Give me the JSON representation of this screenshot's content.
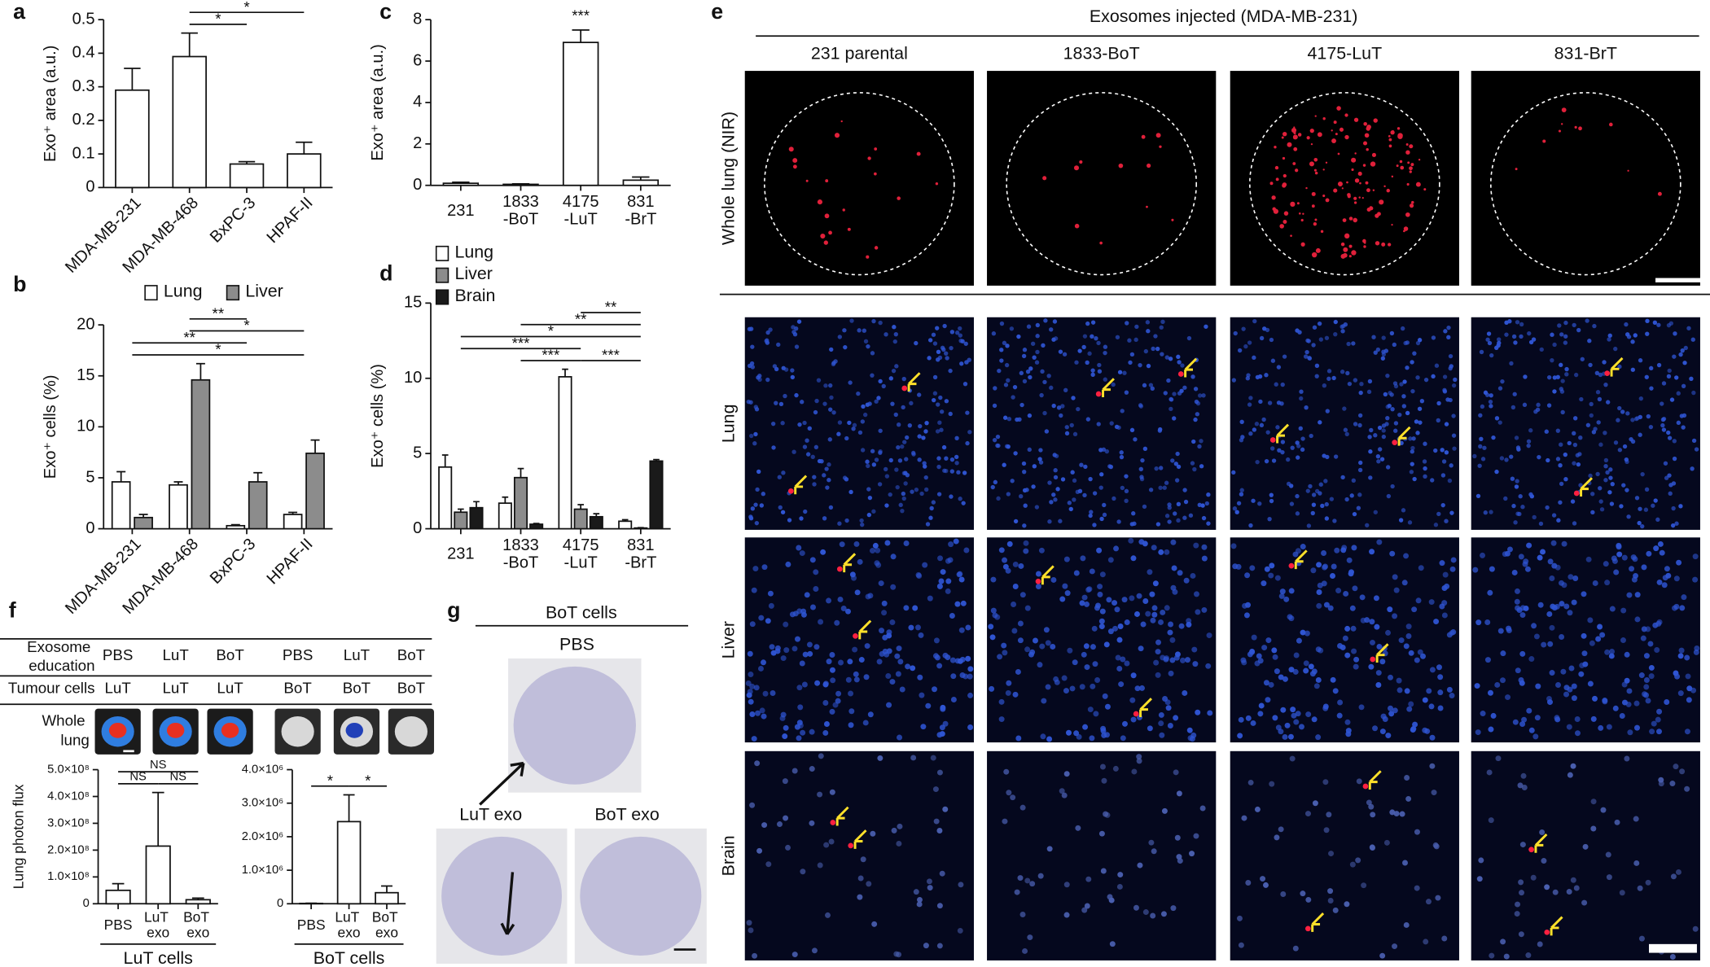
{
  "panel_labels": [
    "a",
    "b",
    "c",
    "d",
    "e",
    "f",
    "g"
  ],
  "chart_data": [
    {
      "type": "bar",
      "ylabel": "Exo⁺ area (a.u.)",
      "categories": [
        "MDA-MB-231",
        "MDA-MB-468",
        "BxPC-3",
        "HPAF-II"
      ],
      "values": [
        0.29,
        0.39,
        0.07,
        0.1
      ],
      "errors": [
        0.065,
        0.07,
        0.007,
        0.035
      ],
      "color": "#ffffff",
      "ylim": [
        0,
        0.5
      ],
      "yticks": [
        0,
        0.1,
        0.2,
        0.3,
        0.4,
        0.5
      ],
      "annotations": [
        {
          "label": "*",
          "from": 1,
          "to": 3
        },
        {
          "label": "*",
          "from": 1,
          "to": 2
        }
      ]
    },
    {
      "type": "grouped_bar",
      "ylabel": "Exo⁺ cells (%)",
      "categories": [
        "MDA-MB-231",
        "MDA-MB-468",
        "BxPC-3",
        "HPAF-II"
      ],
      "series": [
        {
          "name": "Lung",
          "color": "#ffffff",
          "values": [
            4.6,
            4.3,
            0.3,
            1.4
          ],
          "errors": [
            1.0,
            0.3,
            0.1,
            0.2
          ]
        },
        {
          "name": "Liver",
          "color": "#8c8c8c",
          "values": [
            1.1,
            14.6,
            4.6,
            7.4
          ],
          "errors": [
            0.3,
            1.6,
            0.9,
            1.3
          ]
        }
      ],
      "ylim": [
        0,
        20
      ],
      "yticks": [
        0,
        5,
        10,
        15,
        20
      ],
      "legend": "top",
      "annotations": [
        {
          "label": "**",
          "from": 1,
          "to": 2
        },
        {
          "label": "*",
          "from": 1,
          "to": 3
        },
        {
          "label": "**",
          "from": 0,
          "to": 2
        },
        {
          "label": "*",
          "from": 0,
          "to": 3
        }
      ]
    },
    {
      "type": "bar",
      "ylabel": "Exo⁺ area (a.u.)",
      "categories": [
        "231",
        "1833-BoT",
        "4175-LuT",
        "831-BrT"
      ],
      "values": [
        0.1,
        0.05,
        6.9,
        0.25
      ],
      "errors": [
        0.05,
        0.02,
        0.6,
        0.15
      ],
      "color": "#ffffff",
      "ylim": [
        0,
        8
      ],
      "yticks": [
        0,
        2,
        4,
        6,
        8
      ],
      "annotations": [
        {
          "label": "***",
          "from": 2,
          "to": 2
        }
      ]
    },
    {
      "type": "grouped_bar",
      "ylabel": "Exo⁺ cells (%)",
      "categories": [
        "231",
        "1833-BoT",
        "4175-LuT",
        "831-BrT"
      ],
      "series": [
        {
          "name": "Lung",
          "color": "#ffffff",
          "values": [
            4.1,
            1.7,
            10.1,
            0.5
          ],
          "errors": [
            0.8,
            0.4,
            0.5,
            0.1
          ]
        },
        {
          "name": "Liver",
          "color": "#8c8c8c",
          "values": [
            1.1,
            3.4,
            1.3,
            0.05
          ],
          "errors": [
            0.2,
            0.6,
            0.3,
            0.02
          ]
        },
        {
          "name": "Brain",
          "color": "#1a1a1a",
          "values": [
            1.4,
            0.3,
            0.8,
            4.5
          ],
          "errors": [
            0.4,
            0.05,
            0.2,
            0.1
          ]
        }
      ],
      "ylim": [
        0,
        15
      ],
      "yticks": [
        0,
        5,
        10,
        15
      ],
      "legend": "top-left",
      "annotations": [
        {
          "label": "**",
          "from": 2,
          "to": 3
        },
        {
          "label": "**",
          "from": 1,
          "to": 3
        },
        {
          "label": "*",
          "from": 0,
          "to": 3
        },
        {
          "label": "***",
          "from": 0,
          "to": 2
        },
        {
          "label": "***",
          "from": 1,
          "to": 2
        },
        {
          "label": "***",
          "from": 2,
          "to": 3
        }
      ]
    },
    {
      "type": "bar",
      "ylabel": "Lung photon flux",
      "xlabel": "LuT cells",
      "categories": [
        "PBS",
        "LuT exo",
        "BoT exo"
      ],
      "values": [
        50000000,
        215000000,
        15000000
      ],
      "errors": [
        25000000,
        200000000,
        6000000
      ],
      "color": "#ffffff",
      "ylim": [
        0,
        500000000
      ],
      "yticks": [
        0,
        {
          "value": 100000000,
          "label": "1.0×10⁸"
        },
        {
          "value": 200000000,
          "label": "2.0×10⁸"
        },
        {
          "value": 300000000,
          "label": "3.0×10⁸"
        },
        {
          "value": 400000000,
          "label": "4.0×10⁸"
        },
        {
          "value": 500000000,
          "label": "5.0×10⁸"
        }
      ],
      "annotations": [
        {
          "label": "NS",
          "from": 0,
          "to": 2
        },
        {
          "label": "NS",
          "from": 0,
          "to": 1
        },
        {
          "label": "NS",
          "from": 1,
          "to": 2
        }
      ]
    },
    {
      "type": "bar",
      "xlabel": "BoT cells",
      "categories": [
        "PBS",
        "LuT exo",
        "BoT exo"
      ],
      "values": [
        10000,
        2450000,
        330000
      ],
      "errors": [
        5000,
        800000,
        200000
      ],
      "color": "#ffffff",
      "ylim": [
        0,
        4000000
      ],
      "yticks": [
        0,
        {
          "value": 1000000,
          "label": "1.0×10⁶"
        },
        {
          "value": 2000000,
          "label": "2.0×10⁶"
        },
        {
          "value": 3000000,
          "label": "3.0×10⁶"
        },
        {
          "value": 4000000,
          "label": "4.0×10⁶"
        }
      ],
      "annotations": [
        {
          "label": "*",
          "from": 0,
          "to": 1
        },
        {
          "label": "*",
          "from": 1,
          "to": 2
        }
      ]
    }
  ],
  "panel_e": {
    "title": "Exosomes injected (MDA-MB-231)",
    "columns": [
      "231 parental",
      "1833-BoT",
      "4175-LuT",
      "831-BrT"
    ],
    "rows": [
      "Whole lung (NIR)",
      "Lung",
      "Liver",
      "Brain"
    ]
  },
  "panel_f_table": {
    "rows": [
      {
        "label": "Exosome education",
        "cells": [
          "PBS",
          "LuT",
          "BoT",
          "PBS",
          "LuT",
          "BoT"
        ]
      },
      {
        "label": "Tumour cells",
        "cells": [
          "LuT",
          "LuT",
          "LuT",
          "BoT",
          "BoT",
          "BoT"
        ]
      },
      {
        "label": "Whole lung"
      }
    ]
  },
  "panel_g": {
    "title": "BoT cells",
    "images": [
      "PBS",
      "LuT exo",
      "BoT exo"
    ]
  }
}
